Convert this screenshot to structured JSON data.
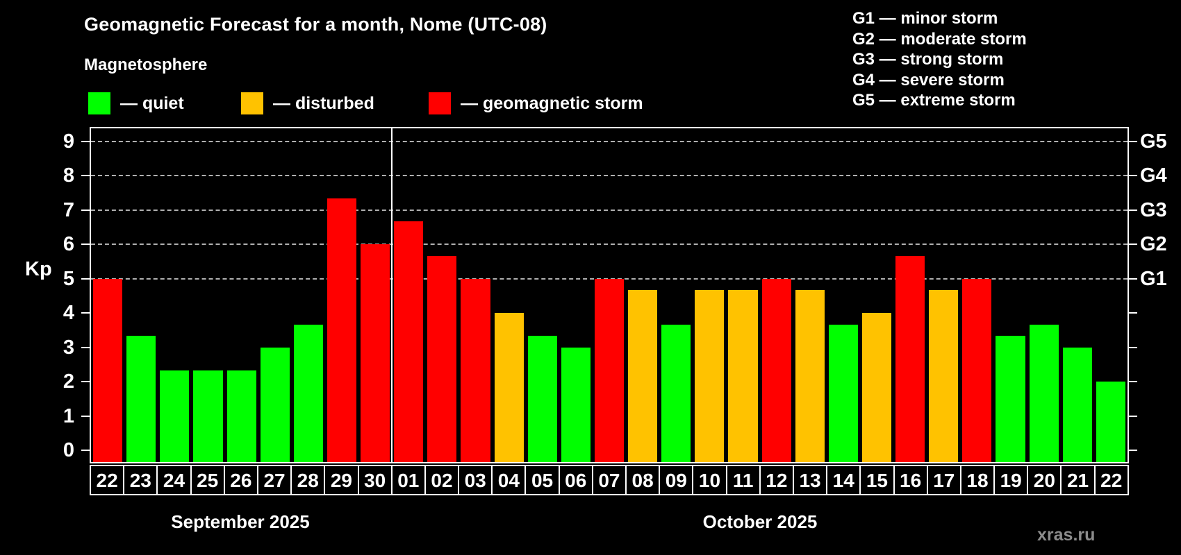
{
  "header": {
    "title": "Geomagnetic Forecast for a month, Nome (UTC-08)",
    "subtitle": "Magnetosphere"
  },
  "legend": {
    "items": [
      {
        "label": "— quiet",
        "status": "quiet",
        "color": "#00ff00"
      },
      {
        "label": "— disturbed",
        "status": "disturbed",
        "color": "#ffc200"
      },
      {
        "label": "— geomagnetic storm",
        "status": "storm",
        "color": "#ff0000"
      }
    ]
  },
  "g_scale_legend": [
    "G1 — minor storm",
    "G2 — moderate storm",
    "G3 — strong storm",
    "G4 — severe storm",
    "G5 — extreme storm"
  ],
  "watermark": "xras.ru",
  "chart_data": {
    "type": "bar",
    "title": "Geomagnetic Forecast for a month, Nome (UTC-08)",
    "ylabel": "Kp",
    "ylim": [
      -0.34,
      9.38
    ],
    "grid": "dashed horizontal at Kp 5-9",
    "legend_position": "top",
    "y_ticks": [
      0,
      1,
      2,
      3,
      4,
      5,
      6,
      7,
      8,
      9
    ],
    "gridline_kp": [
      5,
      6,
      7,
      8,
      9
    ],
    "right_axis_labels": [
      {
        "kp": 5,
        "label": "G1"
      },
      {
        "kp": 6,
        "label": "G2"
      },
      {
        "kp": 7,
        "label": "G3"
      },
      {
        "kp": 8,
        "label": "G4"
      },
      {
        "kp": 9,
        "label": "G5"
      }
    ],
    "months": [
      {
        "label": "September 2025",
        "days": 9
      },
      {
        "label": "October 2025",
        "days": 22
      }
    ],
    "categories": [
      "22",
      "23",
      "24",
      "25",
      "26",
      "27",
      "28",
      "29",
      "30",
      "01",
      "02",
      "03",
      "04",
      "05",
      "06",
      "07",
      "08",
      "09",
      "10",
      "11",
      "12",
      "13",
      "14",
      "15",
      "16",
      "17",
      "18",
      "19",
      "20",
      "21",
      "22"
    ],
    "values": [
      5.0,
      3.33,
      2.33,
      2.33,
      2.33,
      3.0,
      3.67,
      7.33,
      6.0,
      6.67,
      5.67,
      5.0,
      4.0,
      3.33,
      3.0,
      5.0,
      4.67,
      3.67,
      4.67,
      4.67,
      5.0,
      4.67,
      3.67,
      4.0,
      5.67,
      4.67,
      5.0,
      3.33,
      3.67,
      3.0,
      2.0
    ],
    "status": [
      "storm",
      "quiet",
      "quiet",
      "quiet",
      "quiet",
      "quiet",
      "quiet",
      "storm",
      "storm",
      "storm",
      "storm",
      "storm",
      "disturbed",
      "quiet",
      "quiet",
      "storm",
      "disturbed",
      "quiet",
      "disturbed",
      "disturbed",
      "storm",
      "disturbed",
      "quiet",
      "disturbed",
      "storm",
      "disturbed",
      "storm",
      "quiet",
      "quiet",
      "quiet",
      "quiet"
    ],
    "colors": {
      "quiet": "#00ff00",
      "disturbed": "#ffc200",
      "storm": "#ff0000"
    }
  }
}
